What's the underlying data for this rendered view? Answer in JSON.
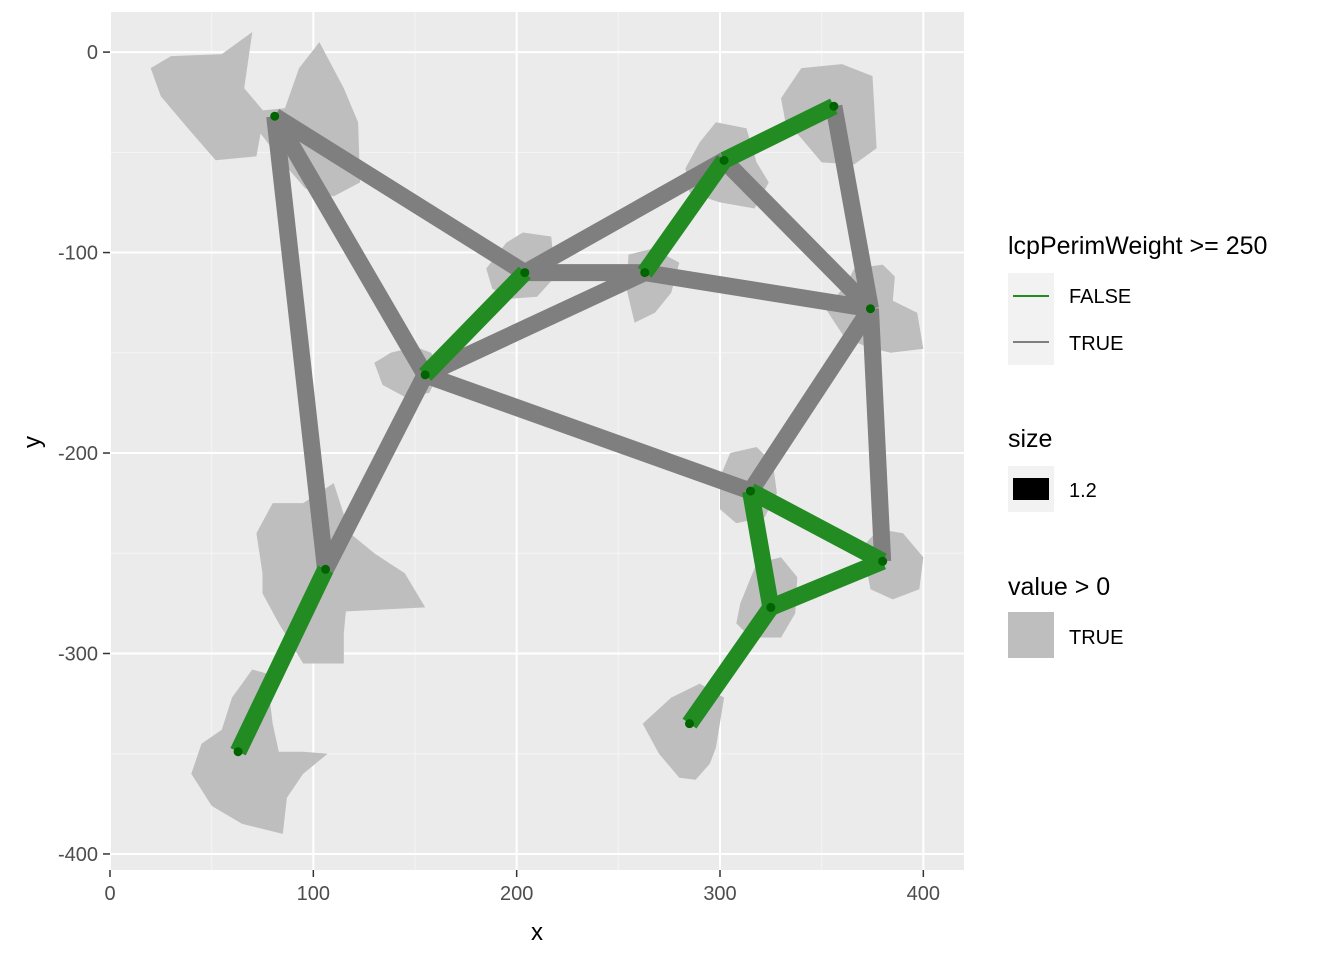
{
  "chart_data": {
    "type": "scatter",
    "xlabel": "x",
    "ylabel": "y",
    "xlim": [
      0,
      420
    ],
    "ylim": [
      -408,
      20
    ],
    "x_ticks": [
      0,
      100,
      200,
      300,
      400
    ],
    "y_ticks": [
      0,
      -100,
      -200,
      -300,
      -400
    ],
    "x_tick_labels": [
      "0",
      "100",
      "200",
      "300",
      "400"
    ],
    "y_tick_labels": [
      "0",
      "-100",
      "-200",
      "-300",
      "-400"
    ],
    "grid": true,
    "legend_position": "right",
    "colors": {
      "panel": "#ebebeb",
      "grid_major": "#ffffff",
      "grid_minor": "#f5f5f5",
      "line_false": "#228b22",
      "line_true": "#7f7f7f",
      "patch": "#bebebe",
      "point": "#006400",
      "legend_key_bg": "#f2f2f2",
      "size_key": "#000000"
    },
    "nodes": [
      {
        "id": "A",
        "x": 81,
        "y": -32
      },
      {
        "id": "B",
        "x": 356,
        "y": -27
      },
      {
        "id": "C",
        "x": 302,
        "y": -54
      },
      {
        "id": "D",
        "x": 204,
        "y": -110
      },
      {
        "id": "E",
        "x": 263,
        "y": -110
      },
      {
        "id": "F",
        "x": 374,
        "y": -128
      },
      {
        "id": "G",
        "x": 155,
        "y": -161
      },
      {
        "id": "H",
        "x": 315,
        "y": -219
      },
      {
        "id": "I",
        "x": 106,
        "y": -258
      },
      {
        "id": "J",
        "x": 380,
        "y": -254
      },
      {
        "id": "K",
        "x": 325,
        "y": -277
      },
      {
        "id": "L",
        "x": 63,
        "y": -349
      },
      {
        "id": "M",
        "x": 285,
        "y": -335
      }
    ],
    "edges": [
      {
        "from": "A",
        "to": "D",
        "lcpPerimWeight_ge_250": true
      },
      {
        "from": "A",
        "to": "G",
        "lcpPerimWeight_ge_250": true
      },
      {
        "from": "A",
        "to": "I",
        "lcpPerimWeight_ge_250": true
      },
      {
        "from": "D",
        "to": "C",
        "lcpPerimWeight_ge_250": true
      },
      {
        "from": "D",
        "to": "E",
        "lcpPerimWeight_ge_250": true
      },
      {
        "from": "C",
        "to": "F",
        "lcpPerimWeight_ge_250": true
      },
      {
        "from": "B",
        "to": "F",
        "lcpPerimWeight_ge_250": true
      },
      {
        "from": "E",
        "to": "F",
        "lcpPerimWeight_ge_250": true
      },
      {
        "from": "G",
        "to": "E",
        "lcpPerimWeight_ge_250": true
      },
      {
        "from": "G",
        "to": "H",
        "lcpPerimWeight_ge_250": true
      },
      {
        "from": "G",
        "to": "I",
        "lcpPerimWeight_ge_250": true
      },
      {
        "from": "F",
        "to": "H",
        "lcpPerimWeight_ge_250": true
      },
      {
        "from": "F",
        "to": "J",
        "lcpPerimWeight_ge_250": true
      },
      {
        "from": "C",
        "to": "B",
        "lcpPerimWeight_ge_250": false
      },
      {
        "from": "C",
        "to": "E",
        "lcpPerimWeight_ge_250": false
      },
      {
        "from": "D",
        "to": "G",
        "lcpPerimWeight_ge_250": false
      },
      {
        "from": "I",
        "to": "L",
        "lcpPerimWeight_ge_250": false
      },
      {
        "from": "H",
        "to": "J",
        "lcpPerimWeight_ge_250": false
      },
      {
        "from": "H",
        "to": "K",
        "lcpPerimWeight_ge_250": false
      },
      {
        "from": "K",
        "to": "J",
        "lcpPerimWeight_ge_250": false
      },
      {
        "from": "K",
        "to": "M",
        "lcpPerimWeight_ge_250": false
      }
    ],
    "patches": [
      {
        "id": "patch-1",
        "points": [
          [
            20,
            -8
          ],
          [
            30,
            -2
          ],
          [
            55,
            -1
          ],
          [
            70,
            10
          ],
          [
            66,
            -18
          ],
          [
            76,
            -30
          ],
          [
            72,
            -52
          ],
          [
            52,
            -54
          ],
          [
            40,
            -40
          ],
          [
            25,
            -22
          ]
        ]
      },
      {
        "id": "patch-2",
        "points": [
          [
            66,
            -30
          ],
          [
            86,
            -28
          ],
          [
            93,
            -8
          ],
          [
            103,
            5
          ],
          [
            115,
            -18
          ],
          [
            122,
            -35
          ],
          [
            123,
            -65
          ],
          [
            110,
            -72
          ],
          [
            96,
            -68
          ],
          [
            85,
            -55
          ]
        ]
      },
      {
        "id": "patch-3",
        "points": [
          [
            330,
            -23
          ],
          [
            340,
            -8
          ],
          [
            360,
            -6
          ],
          [
            375,
            -12
          ],
          [
            377,
            -48
          ],
          [
            366,
            -56
          ],
          [
            350,
            -55
          ],
          [
            340,
            -43
          ],
          [
            332,
            -34
          ]
        ]
      },
      {
        "id": "patch-4",
        "points": [
          [
            283,
            -58
          ],
          [
            290,
            -45
          ],
          [
            298,
            -35
          ],
          [
            313,
            -38
          ],
          [
            318,
            -55
          ],
          [
            324,
            -65
          ],
          [
            317,
            -78
          ],
          [
            300,
            -75
          ],
          [
            285,
            -70
          ]
        ]
      },
      {
        "id": "patch-5",
        "points": [
          [
            185,
            -108
          ],
          [
            195,
            -95
          ],
          [
            203,
            -90
          ],
          [
            217,
            -92
          ],
          [
            219,
            -112
          ],
          [
            210,
            -122
          ],
          [
            197,
            -123
          ],
          [
            188,
            -118
          ]
        ]
      },
      {
        "id": "patch-6",
        "points": [
          [
            255,
            -101
          ],
          [
            267,
            -98
          ],
          [
            280,
            -105
          ],
          [
            276,
            -120
          ],
          [
            268,
            -130
          ],
          [
            258,
            -135
          ],
          [
            254,
            -118
          ]
        ]
      },
      {
        "id": "patch-7",
        "points": [
          [
            352,
            -128
          ],
          [
            362,
            -116
          ],
          [
            366,
            -108
          ],
          [
            380,
            -106
          ],
          [
            386,
            -112
          ],
          [
            385,
            -124
          ],
          [
            397,
            -130
          ],
          [
            400,
            -148
          ],
          [
            384,
            -150
          ],
          [
            372,
            -147
          ],
          [
            361,
            -142
          ]
        ]
      },
      {
        "id": "patch-8",
        "points": [
          [
            130,
            -155
          ],
          [
            138,
            -150
          ],
          [
            150,
            -147
          ],
          [
            158,
            -150
          ],
          [
            162,
            -160
          ],
          [
            157,
            -170
          ],
          [
            145,
            -172
          ],
          [
            134,
            -166
          ]
        ]
      },
      {
        "id": "patch-9",
        "points": [
          [
            75,
            -260
          ],
          [
            72,
            -240
          ],
          [
            80,
            -225
          ],
          [
            95,
            -225
          ],
          [
            110,
            -215
          ],
          [
            118,
            -240
          ],
          [
            130,
            -250
          ],
          [
            145,
            -260
          ],
          [
            155,
            -277
          ],
          [
            116,
            -279
          ],
          [
            115,
            -290
          ],
          [
            115,
            -305
          ],
          [
            95,
            -305
          ],
          [
            83,
            -285
          ],
          [
            75,
            -270
          ]
        ]
      },
      {
        "id": "patch-10",
        "points": [
          [
            300,
            -212
          ],
          [
            305,
            -200
          ],
          [
            318,
            -197
          ],
          [
            326,
            -205
          ],
          [
            328,
            -220
          ],
          [
            322,
            -232
          ],
          [
            308,
            -235
          ],
          [
            300,
            -228
          ]
        ]
      },
      {
        "id": "patch-11",
        "points": [
          [
            310,
            -275
          ],
          [
            318,
            -255
          ],
          [
            330,
            -252
          ],
          [
            338,
            -262
          ],
          [
            337,
            -280
          ],
          [
            330,
            -292
          ],
          [
            315,
            -292
          ],
          [
            308,
            -285
          ]
        ]
      },
      {
        "id": "patch-12",
        "points": [
          [
            370,
            -247
          ],
          [
            378,
            -238
          ],
          [
            390,
            -240
          ],
          [
            400,
            -252
          ],
          [
            398,
            -268
          ],
          [
            385,
            -273
          ],
          [
            374,
            -268
          ]
        ]
      },
      {
        "id": "patch-13",
        "points": [
          [
            45,
            -345
          ],
          [
            55,
            -338
          ],
          [
            60,
            -322
          ],
          [
            70,
            -308
          ],
          [
            77,
            -310
          ],
          [
            80,
            -335
          ],
          [
            83,
            -349
          ],
          [
            95,
            -349
          ],
          [
            107,
            -350
          ],
          [
            95,
            -360
          ],
          [
            87,
            -372
          ],
          [
            85,
            -390
          ],
          [
            65,
            -385
          ],
          [
            50,
            -376
          ],
          [
            40,
            -360
          ]
        ]
      },
      {
        "id": "patch-14",
        "points": [
          [
            262,
            -335
          ],
          [
            276,
            -322
          ],
          [
            290,
            -315
          ],
          [
            302,
            -322
          ],
          [
            298,
            -347
          ],
          [
            295,
            -355
          ],
          [
            288,
            -363
          ],
          [
            280,
            -362
          ],
          [
            270,
            -350
          ]
        ]
      }
    ],
    "legends": [
      {
        "title": "lcpPerimWeight >= 250",
        "entries": [
          "FALSE",
          "TRUE"
        ]
      },
      {
        "title": "size",
        "entries": [
          "1.2"
        ]
      },
      {
        "title": "value > 0",
        "entries": [
          "TRUE"
        ]
      }
    ]
  }
}
